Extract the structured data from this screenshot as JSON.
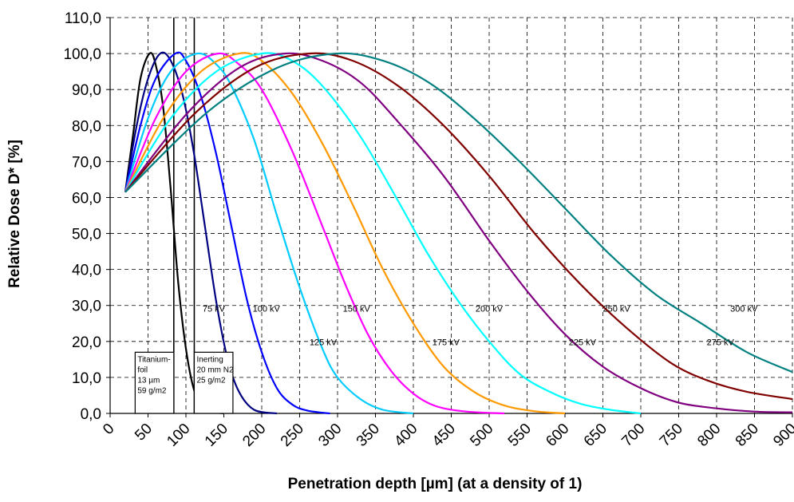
{
  "chart_data": {
    "type": "line",
    "title": "",
    "xlabel": "Penetration depth [µm]  (at a density of 1)",
    "ylabel": "Relative Dose D* [%]",
    "xlim": [
      0,
      900
    ],
    "ylim": [
      0,
      110
    ],
    "x_ticks": [
      "0",
      "50",
      "100",
      "150",
      "200",
      "250",
      "300",
      "350",
      "400",
      "450",
      "500",
      "550",
      "600",
      "650",
      "700",
      "750",
      "800",
      "850",
      "900"
    ],
    "y_ticks": [
      "0,0",
      "10,0",
      "20,0",
      "30,0",
      "40,0",
      "50,0",
      "60,0",
      "70,0",
      "80,0",
      "90,0",
      "100,0",
      "110,0"
    ],
    "grid": true,
    "series": [
      {
        "name": "75 kV",
        "color": "#000000",
        "points": [
          [
            20,
            61.5
          ],
          [
            30,
            77
          ],
          [
            40,
            93
          ],
          [
            52,
            100
          ],
          [
            60,
            97
          ],
          [
            70,
            85
          ],
          [
            80,
            62
          ],
          [
            90,
            36
          ],
          [
            100,
            18
          ],
          [
            110,
            7
          ],
          [
            120,
            2
          ],
          [
            130,
            0.6
          ],
          [
            150,
            0
          ]
        ]
      },
      {
        "name": "100 kV",
        "color": "#000080",
        "points": [
          [
            20,
            61.5
          ],
          [
            35,
            80
          ],
          [
            50,
            93
          ],
          [
            66,
            100
          ],
          [
            80,
            98
          ],
          [
            95,
            89
          ],
          [
            110,
            73
          ],
          [
            125,
            52
          ],
          [
            140,
            31
          ],
          [
            155,
            15
          ],
          [
            170,
            6
          ],
          [
            190,
            1
          ],
          [
            220,
            0
          ]
        ]
      },
      {
        "name": "125 kV",
        "color": "#0000ff",
        "points": [
          [
            20,
            61.5
          ],
          [
            40,
            80
          ],
          [
            60,
            93
          ],
          [
            86,
            100
          ],
          [
            100,
            98
          ],
          [
            120,
            88
          ],
          [
            140,
            72
          ],
          [
            160,
            52
          ],
          [
            180,
            32
          ],
          [
            200,
            17
          ],
          [
            220,
            7
          ],
          [
            240,
            2.5
          ],
          [
            260,
            0.8
          ],
          [
            290,
            0
          ]
        ]
      },
      {
        "name": "150 kV",
        "color": "#00ccff",
        "points": [
          [
            20,
            61.5
          ],
          [
            50,
            82
          ],
          [
            80,
            95
          ],
          [
            115,
            100
          ],
          [
            140,
            97
          ],
          [
            160,
            91
          ],
          [
            190,
            76
          ],
          [
            220,
            55
          ],
          [
            250,
            35
          ],
          [
            280,
            18
          ],
          [
            300,
            10
          ],
          [
            330,
            4
          ],
          [
            360,
            1
          ],
          [
            400,
            0
          ]
        ]
      },
      {
        "name": "175 kV",
        "color": "#ff00ff",
        "points": [
          [
            20,
            61.5
          ],
          [
            60,
            82
          ],
          [
            100,
            95
          ],
          [
            142,
            100
          ],
          [
            170,
            97
          ],
          [
            200,
            90
          ],
          [
            240,
            73
          ],
          [
            280,
            52
          ],
          [
            310,
            36
          ],
          [
            340,
            22
          ],
          [
            370,
            12
          ],
          [
            400,
            5.5
          ],
          [
            430,
            2
          ],
          [
            470,
            0.5
          ],
          [
            520,
            0
          ]
        ]
      },
      {
        "name": "200 kV",
        "color": "#ff9900",
        "points": [
          [
            20,
            61.5
          ],
          [
            70,
            82
          ],
          [
            120,
            95
          ],
          [
            170,
            100
          ],
          [
            200,
            98
          ],
          [
            240,
            89
          ],
          [
            280,
            75
          ],
          [
            320,
            58
          ],
          [
            360,
            40
          ],
          [
            400,
            25
          ],
          [
            440,
            13
          ],
          [
            480,
            6
          ],
          [
            520,
            2.2
          ],
          [
            560,
            0.6
          ],
          [
            600,
            0
          ]
        ]
      },
      {
        "name": "225 kV",
        "color": "#00ffff",
        "points": [
          [
            20,
            61.5
          ],
          [
            80,
            82
          ],
          [
            140,
            95
          ],
          [
            200,
            100
          ],
          [
            240,
            98
          ],
          [
            280,
            91
          ],
          [
            330,
            77
          ],
          [
            380,
            59
          ],
          [
            420,
            44
          ],
          [
            460,
            31
          ],
          [
            500,
            20
          ],
          [
            540,
            11
          ],
          [
            580,
            6
          ],
          [
            620,
            2.7
          ],
          [
            660,
            1
          ],
          [
            700,
            0
          ]
        ]
      },
      {
        "name": "250 kV",
        "color": "#800080",
        "points": [
          [
            20,
            61.5
          ],
          [
            100,
            83
          ],
          [
            170,
            96
          ],
          [
            230,
            100
          ],
          [
            280,
            98
          ],
          [
            330,
            92
          ],
          [
            380,
            81
          ],
          [
            440,
            66
          ],
          [
            500,
            48
          ],
          [
            550,
            34
          ],
          [
            600,
            22
          ],
          [
            650,
            13
          ],
          [
            700,
            7
          ],
          [
            750,
            3
          ],
          [
            800,
            1.4
          ],
          [
            850,
            0.5
          ],
          [
            900,
            0.3
          ]
        ]
      },
      {
        "name": "275 kV",
        "color": "#800000",
        "points": [
          [
            20,
            61.5
          ],
          [
            110,
            83
          ],
          [
            190,
            96
          ],
          [
            262,
            100
          ],
          [
            320,
            98
          ],
          [
            380,
            91
          ],
          [
            440,
            80
          ],
          [
            500,
            66
          ],
          [
            560,
            50
          ],
          [
            620,
            36
          ],
          [
            680,
            24
          ],
          [
            740,
            14
          ],
          [
            790,
            9
          ],
          [
            840,
            6
          ],
          [
            900,
            4
          ]
        ]
      },
      {
        "name": "300 kV",
        "color": "#008080",
        "points": [
          [
            20,
            61.5
          ],
          [
            130,
            84
          ],
          [
            220,
            96
          ],
          [
            298,
            100
          ],
          [
            360,
            98
          ],
          [
            420,
            92
          ],
          [
            480,
            82
          ],
          [
            540,
            70
          ],
          [
            600,
            57
          ],
          [
            660,
            44
          ],
          [
            720,
            33
          ],
          [
            780,
            25
          ],
          [
            840,
            17
          ],
          [
            900,
            11.5
          ]
        ]
      }
    ],
    "labels": [
      {
        "text": "75 kV",
        "x": 122,
        "y": 28.3
      },
      {
        "text": "100 kV",
        "x": 188,
        "y": 28.3
      },
      {
        "text": "150 kV",
        "x": 307,
        "y": 28.3
      },
      {
        "text": "200 kV",
        "x": 482,
        "y": 28.3
      },
      {
        "text": "250 kV",
        "x": 650,
        "y": 28.3
      },
      {
        "text": "300 kV",
        "x": 818,
        "y": 28.3
      },
      {
        "text": "125 kV",
        "x": 263,
        "y": 19
      },
      {
        "text": "175 kV",
        "x": 425,
        "y": 19
      },
      {
        "text": "225 kV",
        "x": 605,
        "y": 19
      },
      {
        "text": "275 kV",
        "x": 787,
        "y": 19
      }
    ],
    "vertical_lines": [
      {
        "name": "titanium-foil-line",
        "x": 84
      },
      {
        "name": "inerting-line",
        "x": 111
      }
    ],
    "annotations": [
      {
        "name": "titanium-foil-box",
        "x0": 33,
        "x1": 84,
        "y0": 0,
        "y1": 17,
        "lines": [
          "Titanium-",
          "foil",
          "13 µm",
          "59 g/m2"
        ]
      },
      {
        "name": "inerting-box",
        "x0": 111,
        "x1": 162,
        "y0": 0,
        "y1": 17,
        "lines": [
          "Inerting",
          "20 mm N2",
          "25 g/m2"
        ]
      }
    ]
  }
}
